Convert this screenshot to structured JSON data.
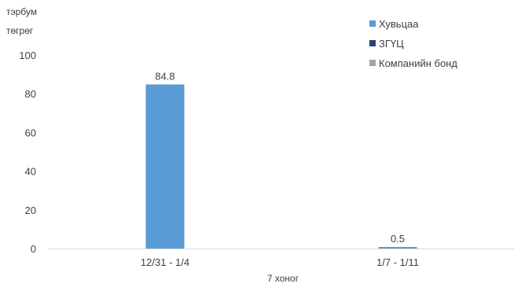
{
  "chart_data": {
    "type": "bar",
    "title": "",
    "ylabel_lines": [
      "тэрбум",
      "төгрөг"
    ],
    "xlabel": "7 хоног",
    "categories": [
      "12/31 - 1/4",
      "1/7 - 1/11"
    ],
    "ylim": [
      0,
      100
    ],
    "yticks": [
      0,
      20,
      40,
      60,
      80,
      100
    ],
    "series": [
      {
        "name": "Хувьцаа",
        "values": [
          84.8,
          0.5
        ],
        "color": "#5b9bd5",
        "data_labels": [
          "84.8",
          "0.5"
        ]
      },
      {
        "name": "ЗГҮЦ",
        "values": [
          0,
          0
        ],
        "color": "#264478",
        "data_labels": []
      },
      {
        "name": "Компанийн бонд",
        "values": [
          0,
          0
        ],
        "color": "#a5a5a5",
        "data_labels": []
      }
    ],
    "grid": false,
    "legend_position": "top-right",
    "axis_line_color": "#d9d9d9"
  }
}
